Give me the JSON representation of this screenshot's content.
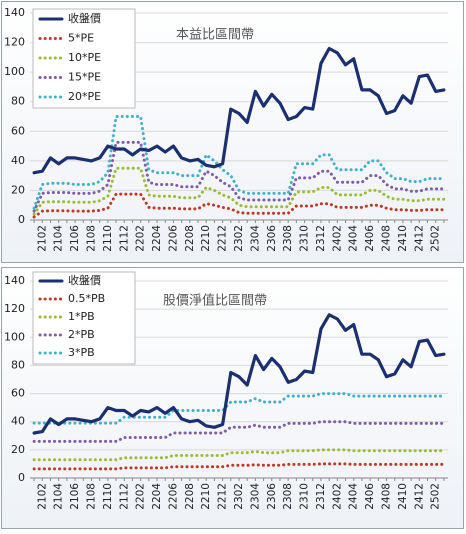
{
  "chart_data": [
    {
      "type": "line",
      "title": "本益比區間帶",
      "categories": [
        null,
        "2102",
        null,
        "2104",
        null,
        "2106",
        null,
        "2108",
        null,
        "2110",
        null,
        "2112",
        null,
        "2202",
        null,
        "2204",
        null,
        "2206",
        null,
        "2208",
        null,
        "2210",
        null,
        "2212",
        null,
        "2302",
        null,
        "2304",
        null,
        "2306",
        null,
        "2308",
        null,
        "2310",
        null,
        "2312",
        null,
        "2402",
        null,
        "2404",
        null,
        "2406",
        null,
        "2408",
        null,
        "2410",
        null,
        "2412",
        null,
        "2502",
        null
      ],
      "ylim": [
        0,
        140
      ],
      "yticks": [
        0,
        20,
        40,
        60,
        80,
        100,
        120,
        140
      ],
      "grid": true,
      "legend": "upper left",
      "series": [
        {
          "name": "收盤價",
          "color": "#1c2f6e",
          "style": "solid",
          "values": [
            32,
            33,
            42,
            38,
            42,
            42,
            41,
            40,
            42,
            50,
            48,
            48,
            44,
            48,
            47,
            50,
            46,
            50,
            42,
            40,
            41,
            37,
            36,
            38,
            75,
            72,
            66,
            87,
            77,
            85,
            79,
            68,
            70,
            76,
            75,
            106,
            116,
            113,
            105,
            109,
            88,
            88,
            84,
            72,
            74,
            84,
            79,
            97,
            98,
            87,
            88
          ]
        },
        {
          "name": "5*PE",
          "color": "#c0392b",
          "style": "dotted",
          "values": [
            2,
            6,
            6.2,
            6.2,
            6.2,
            6,
            6,
            6,
            6.5,
            8,
            17.5,
            17.5,
            17.5,
            17.5,
            8.5,
            8,
            8,
            8,
            7.5,
            7.5,
            7.5,
            11,
            10,
            8.5,
            7.5,
            5,
            4.5,
            4.5,
            4.5,
            4.5,
            4.5,
            4.5,
            9.5,
            9.5,
            9.5,
            11,
            11,
            8.5,
            8.5,
            8.5,
            8.5,
            10,
            10,
            8,
            7,
            7,
            6.5,
            6.5,
            7,
            7,
            7
          ]
        },
        {
          "name": "10*PE",
          "color": "#9bbb3b",
          "style": "dotted",
          "values": [
            4,
            12,
            12.4,
            12.4,
            12.4,
            12,
            12,
            12,
            13,
            16,
            35,
            35,
            35,
            35,
            17,
            16,
            16,
            16,
            15,
            15,
            15,
            22,
            20,
            17,
            15,
            10,
            9,
            9,
            9,
            9,
            9,
            9,
            19,
            19,
            19,
            22,
            22,
            17,
            17,
            17,
            17,
            20,
            20,
            16,
            14,
            14,
            13,
            13,
            14,
            14,
            14
          ]
        },
        {
          "name": "15*PE",
          "color": "#7e5ea6",
          "style": "dotted",
          "values": [
            6,
            18,
            18.6,
            18.6,
            18.6,
            18,
            18,
            18,
            19.5,
            24,
            52.5,
            52.5,
            52.5,
            52.5,
            25.5,
            24,
            24,
            24,
            22.5,
            22.5,
            22.5,
            33,
            30,
            25.5,
            22.5,
            15,
            13.5,
            13.5,
            13.5,
            13.5,
            13.5,
            13.5,
            28.5,
            28.5,
            28.5,
            33,
            33,
            25.5,
            25.5,
            25.5,
            25.5,
            30,
            30,
            24,
            21,
            21,
            19.5,
            19.5,
            21,
            21,
            21
          ]
        },
        {
          "name": "20*PE",
          "color": "#45b0c8",
          "style": "dotted",
          "values": [
            8,
            24,
            24.8,
            24.8,
            24.8,
            24,
            24,
            24,
            26,
            32,
            70,
            70,
            70,
            70,
            34,
            32,
            32,
            32,
            30,
            30,
            30,
            44,
            40,
            34,
            30,
            20,
            18,
            18,
            18,
            18,
            18,
            18,
            38,
            38,
            38,
            44,
            44,
            34,
            34,
            34,
            34,
            40,
            40,
            32,
            28,
            28,
            26,
            26,
            28,
            28,
            28
          ]
        }
      ]
    },
    {
      "type": "line",
      "title": "股價淨值比區間帶",
      "categories": [
        null,
        "2102",
        null,
        "2104",
        null,
        "2106",
        null,
        "2108",
        null,
        "2110",
        null,
        "2112",
        null,
        "2202",
        null,
        "2204",
        null,
        "2206",
        null,
        "2208",
        null,
        "2210",
        null,
        "2212",
        null,
        "2302",
        null,
        "2304",
        null,
        "2306",
        null,
        "2308",
        null,
        "2310",
        null,
        "2312",
        null,
        "2402",
        null,
        "2404",
        null,
        "2406",
        null,
        "2408",
        null,
        "2410",
        null,
        "2412",
        null,
        "2502",
        null
      ],
      "ylim": [
        0,
        140
      ],
      "yticks": [
        0,
        20,
        40,
        60,
        80,
        100,
        120,
        140
      ],
      "grid": true,
      "legend": "upper left",
      "series": [
        {
          "name": "收盤價",
          "color": "#1c2f6e",
          "style": "solid",
          "values": [
            32,
            33,
            42,
            38,
            42,
            42,
            41,
            40,
            42,
            50,
            48,
            48,
            44,
            48,
            47,
            50,
            46,
            50,
            42,
            40,
            41,
            37,
            36,
            38,
            75,
            72,
            66,
            87,
            77,
            85,
            79,
            68,
            70,
            76,
            75,
            106,
            116,
            113,
            105,
            109,
            88,
            88,
            84,
            72,
            74,
            84,
            79,
            97,
            98,
            87,
            88
          ]
        },
        {
          "name": "0.5*PB",
          "color": "#c0392b",
          "style": "dotted",
          "values": [
            6.5,
            6.5,
            6.5,
            6.5,
            6.5,
            6.5,
            6.5,
            6.5,
            6.5,
            6.5,
            6.5,
            7.2,
            7.2,
            7.2,
            7.2,
            7.2,
            7.2,
            8,
            8,
            8,
            8,
            8,
            8,
            8,
            9,
            9,
            9,
            9.4,
            9,
            9,
            9,
            9.7,
            9.7,
            9.7,
            9.7,
            10,
            10,
            10,
            10,
            9.7,
            9.7,
            9.7,
            9.7,
            9.7,
            9.7,
            9.7,
            9.7,
            9.7,
            9.7,
            9.7,
            9.7
          ]
        },
        {
          "name": "1*PB",
          "color": "#9bbb3b",
          "style": "dotted",
          "values": [
            13,
            13,
            13,
            13,
            13,
            13,
            13,
            13,
            13,
            13,
            13,
            14.4,
            14.4,
            14.4,
            14.4,
            14.4,
            14.4,
            16,
            16,
            16,
            16,
            16,
            16,
            16,
            18,
            18,
            18,
            18.8,
            18,
            18,
            18,
            19.4,
            19.4,
            19.4,
            19.4,
            20,
            20,
            20,
            20,
            19.4,
            19.4,
            19.4,
            19.4,
            19.4,
            19.4,
            19.4,
            19.4,
            19.4,
            19.4,
            19.4,
            19.4
          ]
        },
        {
          "name": "2*PB",
          "color": "#7e5ea6",
          "style": "dotted",
          "values": [
            26,
            26,
            26,
            26,
            26,
            26,
            26,
            26,
            26,
            26,
            26,
            28.8,
            28.8,
            28.8,
            28.8,
            28.8,
            28.8,
            32,
            32,
            32,
            32,
            32,
            32,
            32,
            36,
            36,
            36,
            37.6,
            36,
            36,
            36,
            38.8,
            38.8,
            38.8,
            38.8,
            40,
            40,
            40,
            40,
            38.8,
            38.8,
            38.8,
            38.8,
            38.8,
            38.8,
            38.8,
            38.8,
            38.8,
            38.8,
            38.8,
            38.8
          ]
        },
        {
          "name": "3*PB",
          "color": "#45b0c8",
          "style": "dotted",
          "values": [
            39,
            39,
            39,
            39,
            39,
            39,
            39,
            39,
            39,
            39,
            39,
            43.2,
            43.2,
            43.2,
            43.2,
            43.2,
            43.2,
            48,
            48,
            48,
            48,
            48,
            48,
            48,
            54,
            54,
            54,
            56.4,
            54,
            54,
            54,
            58.2,
            58.2,
            58.2,
            58.2,
            60,
            60,
            60,
            60,
            58.2,
            58.2,
            58.2,
            58.2,
            58.2,
            58.2,
            58.2,
            58.2,
            58.2,
            58.2,
            58.2,
            58.2
          ]
        }
      ]
    }
  ]
}
